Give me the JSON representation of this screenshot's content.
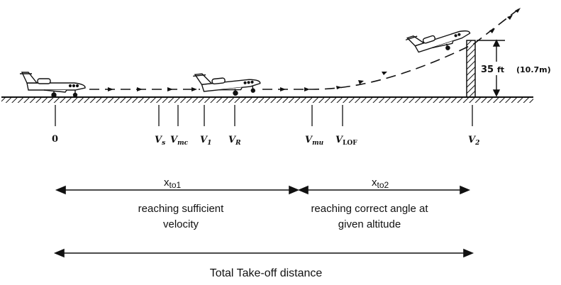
{
  "speed_marks": {
    "zero": "0",
    "vs": {
      "base": "V",
      "sub": "s"
    },
    "vmc": {
      "base": "V",
      "sub": "mc"
    },
    "v1": {
      "base": "V",
      "sub": "1"
    },
    "vr": {
      "base": "V",
      "sub": "R"
    },
    "vmu": {
      "base": "V",
      "sub": "mu"
    },
    "vlof": {
      "base": "V",
      "sub": "LOF"
    },
    "v2": {
      "base": "V",
      "sub": "2"
    }
  },
  "obstacle": {
    "height_value": "35",
    "height_unit": "ft",
    "height_metric": "(10.7m)"
  },
  "segments": {
    "xto1": {
      "base": "x",
      "sub": "to1"
    },
    "xto2": {
      "base": "x",
      "sub": "to2"
    }
  },
  "descriptions": {
    "phase1_line1": "reaching sufficient",
    "phase1_line2": "velocity",
    "phase2_line1": "reaching correct angle at",
    "phase2_line2": "given altitude"
  },
  "total_label": "Total Take-off distance",
  "colors": {
    "ink": "#111111",
    "background": "#ffffff"
  }
}
